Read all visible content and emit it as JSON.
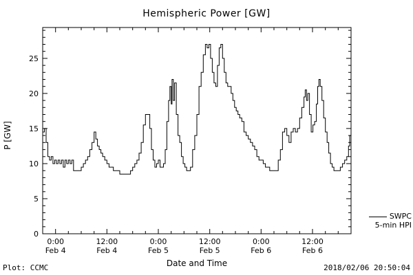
{
  "footer": {
    "plot_credit": "Plot: CCMC",
    "timestamp": "2018/02/06 20:50:04"
  },
  "legend": {
    "source": "SWPC",
    "series": "5-min HPI"
  },
  "chart_data": {
    "type": "line",
    "title": "Hemispheric Power [GW]",
    "xlabel": "Date and Time",
    "ylabel": "P [GW]",
    "ylim": [
      0,
      29.4
    ],
    "xlim_hours_from_feb4_0000": [
      -3,
      69
    ],
    "y_ticks": [
      0,
      5,
      10,
      15,
      20,
      25
    ],
    "y_minor_step": 1,
    "x_minor_step_hours": 3,
    "x_ticks": [
      {
        "hour": 0,
        "time": "0:00",
        "date": "Feb 4"
      },
      {
        "hour": 12,
        "time": "12:00",
        "date": "Feb 4"
      },
      {
        "hour": 24,
        "time": "0:00",
        "date": "Feb 5"
      },
      {
        "hour": 36,
        "time": "12:00",
        "date": "Feb 5"
      },
      {
        "hour": 48,
        "time": "0:00",
        "date": "Feb 6"
      },
      {
        "hour": 60,
        "time": "12:00",
        "date": "Feb 6"
      }
    ],
    "grid": false,
    "legend_position": "right-outside-bottom",
    "line_color": "#000000",
    "background": "#ffffff",
    "series": [
      {
        "name": "SWPC 5-min HPI",
        "points": [
          [
            -3,
            14.5
          ],
          [
            -2.6,
            15
          ],
          [
            -2.2,
            13
          ],
          [
            -1.8,
            11
          ],
          [
            -1.4,
            10.5
          ],
          [
            -1,
            11
          ],
          [
            -0.6,
            10
          ],
          [
            -0.2,
            10.5
          ],
          [
            0.2,
            10
          ],
          [
            0.6,
            10.5
          ],
          [
            1,
            10
          ],
          [
            1.4,
            10.5
          ],
          [
            1.8,
            9.5
          ],
          [
            2.2,
            10.5
          ],
          [
            2.6,
            10
          ],
          [
            3,
            10.5
          ],
          [
            3.4,
            10
          ],
          [
            3.8,
            10.5
          ],
          [
            4.2,
            9
          ],
          [
            4.8,
            9
          ],
          [
            5.4,
            9
          ],
          [
            6,
            9.5
          ],
          [
            6.5,
            10
          ],
          [
            7,
            10.5
          ],
          [
            7.5,
            11
          ],
          [
            8,
            12
          ],
          [
            8.5,
            13
          ],
          [
            9,
            14.5
          ],
          [
            9.4,
            13.5
          ],
          [
            9.8,
            12.5
          ],
          [
            10.2,
            12
          ],
          [
            10.6,
            11.5
          ],
          [
            11,
            11
          ],
          [
            11.5,
            10.5
          ],
          [
            12,
            10
          ],
          [
            12.5,
            9.5
          ],
          [
            13,
            9.5
          ],
          [
            13.5,
            9
          ],
          [
            14,
            9
          ],
          [
            14.5,
            9
          ],
          [
            15,
            8.5
          ],
          [
            15.5,
            8.5
          ],
          [
            16,
            8.5
          ],
          [
            16.5,
            8.5
          ],
          [
            17,
            8.5
          ],
          [
            17.5,
            9
          ],
          [
            18,
            9.5
          ],
          [
            18.5,
            10
          ],
          [
            19,
            10.5
          ],
          [
            19.5,
            11.5
          ],
          [
            20,
            13
          ],
          [
            20.5,
            15.5
          ],
          [
            21,
            17
          ],
          [
            21.6,
            17
          ],
          [
            22,
            15
          ],
          [
            22.4,
            12
          ],
          [
            22.8,
            10.5
          ],
          [
            23.2,
            9.5
          ],
          [
            23.6,
            10
          ],
          [
            24,
            10.5
          ],
          [
            24.4,
            9.5
          ],
          [
            24.8,
            9.5
          ],
          [
            25.2,
            10
          ],
          [
            25.6,
            12
          ],
          [
            26,
            16
          ],
          [
            26.4,
            19
          ],
          [
            26.7,
            21
          ],
          [
            27,
            18.5
          ],
          [
            27.2,
            22
          ],
          [
            27.5,
            19
          ],
          [
            27.8,
            21.5
          ],
          [
            28.2,
            17
          ],
          [
            28.6,
            14
          ],
          [
            29,
            13
          ],
          [
            29.4,
            11
          ],
          [
            29.8,
            10
          ],
          [
            30.2,
            9.5
          ],
          [
            30.6,
            9
          ],
          [
            31,
            9
          ],
          [
            31.5,
            9.5
          ],
          [
            32,
            12
          ],
          [
            32.5,
            14
          ],
          [
            33,
            17
          ],
          [
            33.5,
            21
          ],
          [
            34,
            23
          ],
          [
            34.5,
            25.5
          ],
          [
            35,
            27
          ],
          [
            35.4,
            26.5
          ],
          [
            35.8,
            27
          ],
          [
            36.2,
            25
          ],
          [
            36.6,
            23
          ],
          [
            37,
            21.5
          ],
          [
            37.4,
            21
          ],
          [
            37.8,
            24
          ],
          [
            38.2,
            26.5
          ],
          [
            38.6,
            27
          ],
          [
            39,
            25
          ],
          [
            39.4,
            23
          ],
          [
            39.8,
            21.5
          ],
          [
            40.2,
            21
          ],
          [
            40.6,
            21
          ],
          [
            41,
            20
          ],
          [
            41.4,
            19
          ],
          [
            41.8,
            18
          ],
          [
            42.2,
            17.5
          ],
          [
            42.6,
            17
          ],
          [
            43,
            16.5
          ],
          [
            43.5,
            16
          ],
          [
            44,
            14.5
          ],
          [
            44.5,
            14
          ],
          [
            45,
            13.5
          ],
          [
            45.5,
            13
          ],
          [
            46,
            12.5
          ],
          [
            46.5,
            12
          ],
          [
            47,
            11
          ],
          [
            47.5,
            10.5
          ],
          [
            48,
            10.5
          ],
          [
            48.5,
            10
          ],
          [
            49,
            9.5
          ],
          [
            49.5,
            9.5
          ],
          [
            50,
            9
          ],
          [
            50.5,
            9
          ],
          [
            51,
            9
          ],
          [
            51.5,
            9
          ],
          [
            52,
            10.5
          ],
          [
            52.5,
            12
          ],
          [
            53,
            14.5
          ],
          [
            53.5,
            15
          ],
          [
            54,
            14
          ],
          [
            54.5,
            13
          ],
          [
            55,
            14.5
          ],
          [
            55.5,
            15
          ],
          [
            56,
            14.5
          ],
          [
            56.5,
            15
          ],
          [
            57,
            16.5
          ],
          [
            57.5,
            18
          ],
          [
            58,
            19.5
          ],
          [
            58.3,
            20.5
          ],
          [
            58.6,
            19
          ],
          [
            58.9,
            20
          ],
          [
            59.3,
            17
          ],
          [
            59.7,
            14.5
          ],
          [
            60.1,
            15.5
          ],
          [
            60.5,
            16
          ],
          [
            60.9,
            18.5
          ],
          [
            61.2,
            21
          ],
          [
            61.5,
            22
          ],
          [
            61.8,
            21
          ],
          [
            62.2,
            19
          ],
          [
            62.6,
            16.5
          ],
          [
            63,
            14.5
          ],
          [
            63.4,
            13
          ],
          [
            63.8,
            11.5
          ],
          [
            64.2,
            10
          ],
          [
            64.6,
            9.5
          ],
          [
            65,
            9
          ],
          [
            65.5,
            9
          ],
          [
            66,
            9
          ],
          [
            66.5,
            9.5
          ],
          [
            67,
            10
          ],
          [
            67.5,
            10.5
          ],
          [
            68,
            11
          ],
          [
            68.4,
            12.5
          ],
          [
            68.7,
            14
          ],
          [
            69,
            14.5
          ]
        ]
      }
    ]
  }
}
